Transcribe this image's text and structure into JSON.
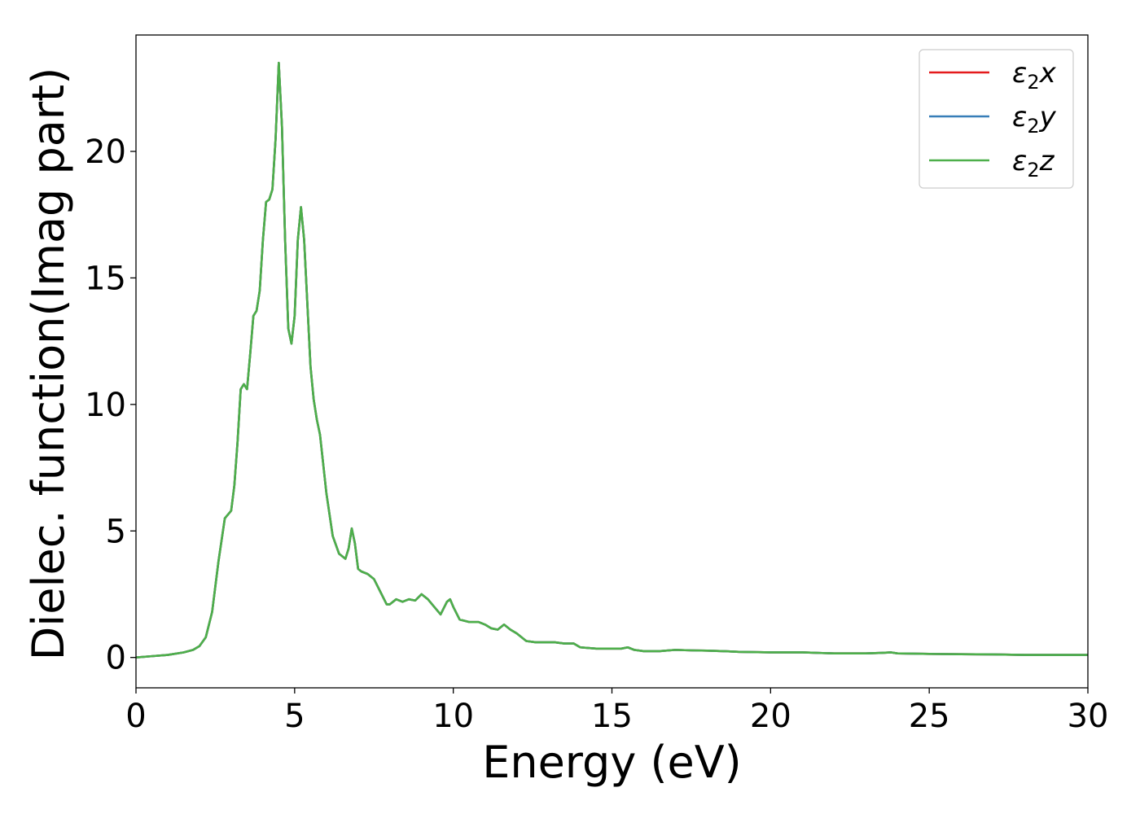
{
  "chart_data": {
    "type": "line",
    "xlabel": "Energy (eV)",
    "ylabel": "Dielec. function(Imag part)",
    "xlim": [
      0,
      30
    ],
    "ylim": [
      -1.2,
      24.6
    ],
    "xticks": [
      0,
      5,
      10,
      15,
      20,
      25,
      30
    ],
    "xtick_labels": [
      "0",
      "5",
      "10",
      "15",
      "20",
      "25",
      "30"
    ],
    "yticks": [
      0,
      5,
      10,
      15,
      20
    ],
    "ytick_labels": [
      "0",
      "5",
      "10",
      "15",
      "20"
    ],
    "grid": false,
    "legend_position": "top-right",
    "x": [
      0,
      0.5,
      1.0,
      1.5,
      1.8,
      2.0,
      2.2,
      2.4,
      2.6,
      2.8,
      3.0,
      3.1,
      3.2,
      3.3,
      3.4,
      3.5,
      3.6,
      3.7,
      3.8,
      3.9,
      4.0,
      4.1,
      4.2,
      4.3,
      4.4,
      4.5,
      4.6,
      4.7,
      4.8,
      4.9,
      5.0,
      5.1,
      5.2,
      5.3,
      5.4,
      5.5,
      5.6,
      5.7,
      5.8,
      6.0,
      6.2,
      6.4,
      6.6,
      6.7,
      6.8,
      6.9,
      7.0,
      7.1,
      7.3,
      7.5,
      7.7,
      7.9,
      8.0,
      8.2,
      8.4,
      8.6,
      8.8,
      9.0,
      9.2,
      9.4,
      9.6,
      9.8,
      9.9,
      10.0,
      10.2,
      10.5,
      10.8,
      11.0,
      11.2,
      11.4,
      11.6,
      11.8,
      12.0,
      12.3,
      12.6,
      12.9,
      13.2,
      13.5,
      13.8,
      14.0,
      14.5,
      15.0,
      15.3,
      15.5,
      15.7,
      16.0,
      16.5,
      17.0,
      17.5,
      18.0,
      18.5,
      19.0,
      20.0,
      21.0,
      22.0,
      23.0,
      23.5,
      23.8,
      24.0,
      25.0,
      26.0,
      27.0,
      28.0,
      29.0,
      30.0
    ],
    "series": [
      {
        "name": "ε2x",
        "color": "#e41a1c",
        "values": [
          0.0,
          0.05,
          0.1,
          0.2,
          0.3,
          0.45,
          0.8,
          1.8,
          3.8,
          5.5,
          5.8,
          6.8,
          8.5,
          10.6,
          10.8,
          10.6,
          12.0,
          13.5,
          13.7,
          14.5,
          16.5,
          18.0,
          18.1,
          18.5,
          20.5,
          23.5,
          21.0,
          16.5,
          13.0,
          12.4,
          13.5,
          16.5,
          17.8,
          16.5,
          14.0,
          11.5,
          10.2,
          9.4,
          8.8,
          6.5,
          4.8,
          4.1,
          3.9,
          4.3,
          5.1,
          4.5,
          3.5,
          3.4,
          3.3,
          3.1,
          2.6,
          2.1,
          2.1,
          2.3,
          2.2,
          2.3,
          2.25,
          2.5,
          2.3,
          2.0,
          1.7,
          2.2,
          2.3,
          2.0,
          1.5,
          1.4,
          1.4,
          1.3,
          1.15,
          1.1,
          1.3,
          1.1,
          0.95,
          0.65,
          0.6,
          0.6,
          0.6,
          0.55,
          0.55,
          0.4,
          0.35,
          0.35,
          0.35,
          0.4,
          0.3,
          0.25,
          0.25,
          0.3,
          0.28,
          0.27,
          0.25,
          0.22,
          0.2,
          0.2,
          0.16,
          0.16,
          0.18,
          0.2,
          0.16,
          0.14,
          0.13,
          0.12,
          0.1,
          0.1,
          0.1
        ]
      },
      {
        "name": "ε2y",
        "color": "#377eb8",
        "values": [
          0.0,
          0.05,
          0.1,
          0.2,
          0.3,
          0.45,
          0.8,
          1.8,
          3.8,
          5.5,
          5.8,
          6.8,
          8.5,
          10.6,
          10.8,
          10.6,
          12.0,
          13.5,
          13.7,
          14.5,
          16.5,
          18.0,
          18.1,
          18.5,
          20.5,
          23.5,
          21.0,
          16.5,
          13.0,
          12.4,
          13.5,
          16.5,
          17.8,
          16.5,
          14.0,
          11.5,
          10.2,
          9.4,
          8.8,
          6.5,
          4.8,
          4.1,
          3.9,
          4.3,
          5.1,
          4.5,
          3.5,
          3.4,
          3.3,
          3.1,
          2.6,
          2.1,
          2.1,
          2.3,
          2.2,
          2.3,
          2.25,
          2.5,
          2.3,
          2.0,
          1.7,
          2.2,
          2.3,
          2.0,
          1.5,
          1.4,
          1.4,
          1.3,
          1.15,
          1.1,
          1.3,
          1.1,
          0.95,
          0.65,
          0.6,
          0.6,
          0.6,
          0.55,
          0.55,
          0.4,
          0.35,
          0.35,
          0.35,
          0.4,
          0.3,
          0.25,
          0.25,
          0.3,
          0.28,
          0.27,
          0.25,
          0.22,
          0.2,
          0.2,
          0.16,
          0.16,
          0.18,
          0.2,
          0.16,
          0.14,
          0.13,
          0.12,
          0.1,
          0.1,
          0.1
        ]
      },
      {
        "name": "ε2z",
        "color": "#4daf4a",
        "values": [
          0.0,
          0.05,
          0.1,
          0.2,
          0.3,
          0.45,
          0.8,
          1.8,
          3.8,
          5.5,
          5.8,
          6.8,
          8.5,
          10.6,
          10.8,
          10.6,
          12.0,
          13.5,
          13.7,
          14.5,
          16.5,
          18.0,
          18.1,
          18.5,
          20.5,
          23.5,
          21.0,
          16.5,
          13.0,
          12.4,
          13.5,
          16.5,
          17.8,
          16.5,
          14.0,
          11.5,
          10.2,
          9.4,
          8.8,
          6.5,
          4.8,
          4.1,
          3.9,
          4.3,
          5.1,
          4.5,
          3.5,
          3.4,
          3.3,
          3.1,
          2.6,
          2.1,
          2.1,
          2.3,
          2.2,
          2.3,
          2.25,
          2.5,
          2.3,
          2.0,
          1.7,
          2.2,
          2.3,
          2.0,
          1.5,
          1.4,
          1.4,
          1.3,
          1.15,
          1.1,
          1.3,
          1.1,
          0.95,
          0.65,
          0.6,
          0.6,
          0.6,
          0.55,
          0.55,
          0.4,
          0.35,
          0.35,
          0.35,
          0.4,
          0.3,
          0.25,
          0.25,
          0.3,
          0.28,
          0.27,
          0.25,
          0.22,
          0.2,
          0.2,
          0.16,
          0.16,
          0.18,
          0.2,
          0.16,
          0.14,
          0.13,
          0.12,
          0.1,
          0.1,
          0.1
        ]
      }
    ],
    "legend": [
      {
        "symbol": "ε",
        "sub": "2",
        "axis": "x",
        "color": "#e41a1c"
      },
      {
        "symbol": "ε",
        "sub": "2",
        "axis": "y",
        "color": "#377eb8"
      },
      {
        "symbol": "ε",
        "sub": "2",
        "axis": "z",
        "color": "#4daf4a"
      }
    ]
  }
}
